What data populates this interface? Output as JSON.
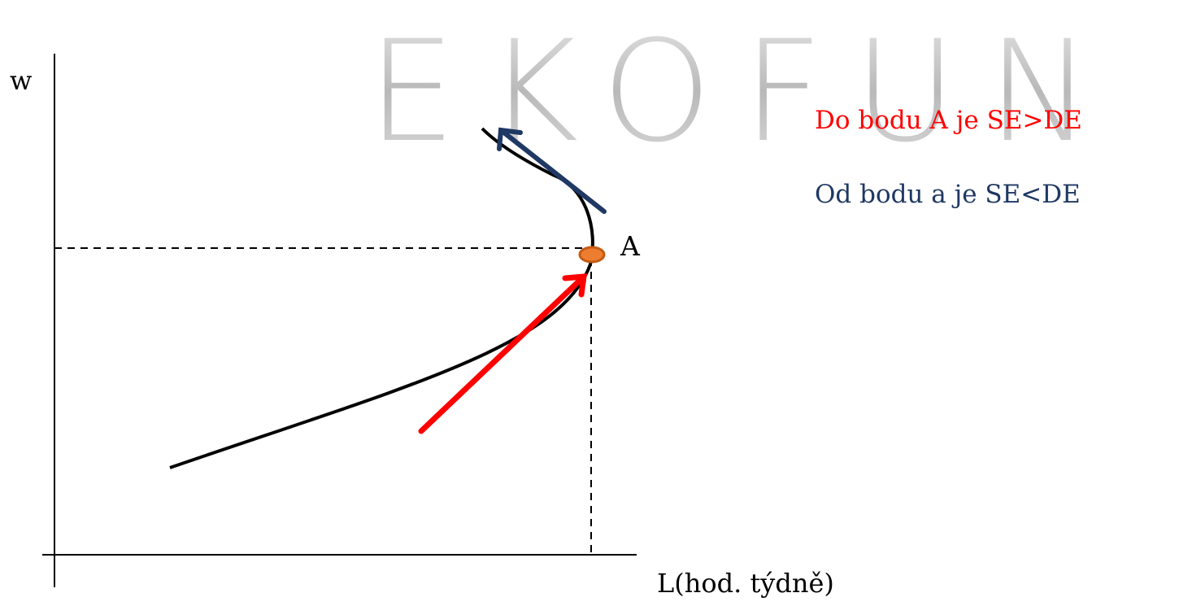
{
  "logo": {
    "text": "EKOFUN",
    "color": "#c4c4c4"
  },
  "axes": {
    "y_label": "w",
    "x_label": "L(hod. týdně)"
  },
  "point": {
    "label": "A",
    "color": "#ed7d31"
  },
  "notes": [
    {
      "text": "Do bodu A je SE>DE",
      "color": "#ff0000"
    },
    {
      "text": "Od bodu a je SE<DE",
      "color": "#1f3864"
    }
  ],
  "arrows": {
    "below_A_color": "#ff0000",
    "above_A_color": "#1f3864"
  },
  "curve_color": "#000000"
}
